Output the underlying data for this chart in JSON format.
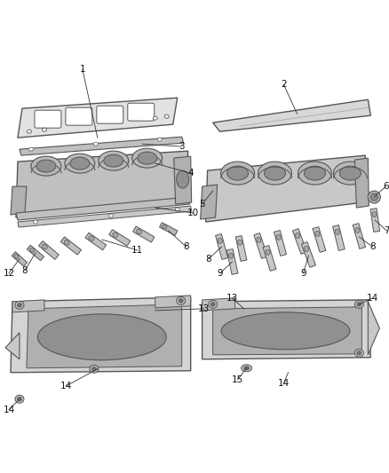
{
  "background_color": "#ffffff",
  "line_color": "#555555",
  "label_color": "#111111",
  "fig_width": 4.38,
  "fig_height": 5.33,
  "dpi": 100,
  "gray_light": "#e2e2e2",
  "gray_mid": "#c0c0c0",
  "gray_dark": "#909090",
  "gray_darker": "#707070"
}
